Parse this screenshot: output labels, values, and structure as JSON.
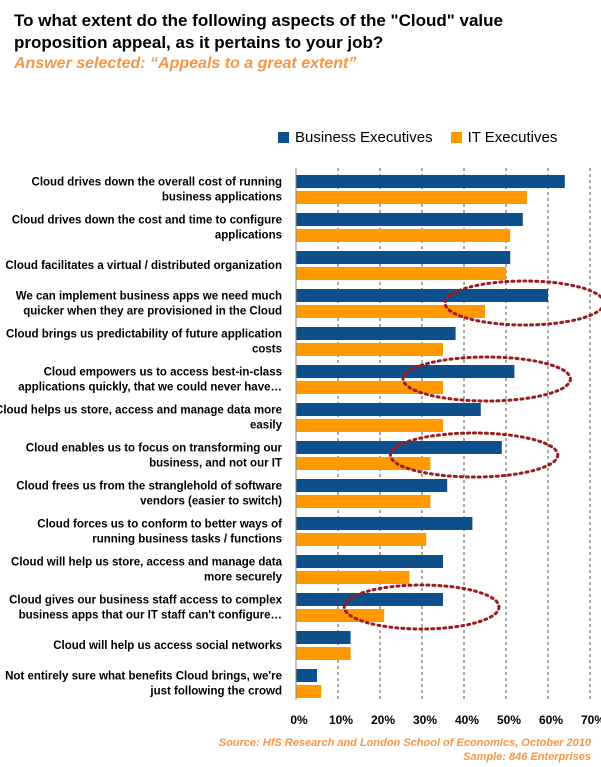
{
  "chart_data": {
    "type": "bar",
    "orientation": "horizontal",
    "title": "To what extent do the following aspects of the \"Cloud\" value proposition appeal, as it pertains to your job?",
    "subtitle": "Answer selected:  “Appeals to a great extent”",
    "categories": [
      [
        "Cloud drives down the overall cost of running",
        "business applications"
      ],
      [
        "Cloud drives down the cost and time to configure",
        "applications"
      ],
      [
        "Cloud facilitates a virtual / distributed organization"
      ],
      [
        "We can implement business apps we need much",
        "quicker when they are provisioned in the Cloud"
      ],
      [
        "Cloud brings us predictability of future application",
        "costs"
      ],
      [
        "Cloud empowers us to access best-in-class",
        "applications quickly, that we could never have…"
      ],
      [
        "Cloud helps us store, access and manage data more",
        "easily"
      ],
      [
        "Cloud enables us to focus on transforming our",
        "business, and not our IT"
      ],
      [
        "Cloud frees us from the stranglehold of software",
        "vendors (easier to switch)"
      ],
      [
        "Cloud forces us to conform to better ways of",
        "running business tasks / functions"
      ],
      [
        "Cloud will help us store, access and manage data",
        "more securely"
      ],
      [
        "Cloud gives our business staff access to complex",
        "business apps that our IT staff can't configure…"
      ],
      [
        "Cloud will help us access social networks"
      ],
      [
        "Not entirely sure what benefits Cloud brings, we're",
        "just following the crowd"
      ]
    ],
    "series": [
      {
        "name": "Business Executives",
        "color": "#0d4f8b",
        "values": [
          64,
          54,
          51,
          60,
          38,
          52,
          44,
          49,
          36,
          42,
          35,
          35,
          13,
          5
        ]
      },
      {
        "name": "IT Executives",
        "color": "#ff9900",
        "values": [
          55,
          51,
          50,
          45,
          35,
          35,
          35,
          32,
          32,
          31,
          27,
          21,
          13,
          6
        ]
      }
    ],
    "x_ticks": [
      "0%",
      "10%",
      "20%",
      "30%",
      "40%",
      "50%",
      "60%",
      "70%"
    ],
    "xlim": [
      0,
      70
    ],
    "grid": "vertical dashed",
    "legend": "top-right",
    "highlighted_rows": [
      3,
      5,
      7,
      11
    ],
    "highlight_color": "#9b1c1c"
  },
  "source": {
    "line1": "Source:  HfS Research and London School of Economics, October 2010",
    "line2": "Sample:  846 Enterprises"
  }
}
